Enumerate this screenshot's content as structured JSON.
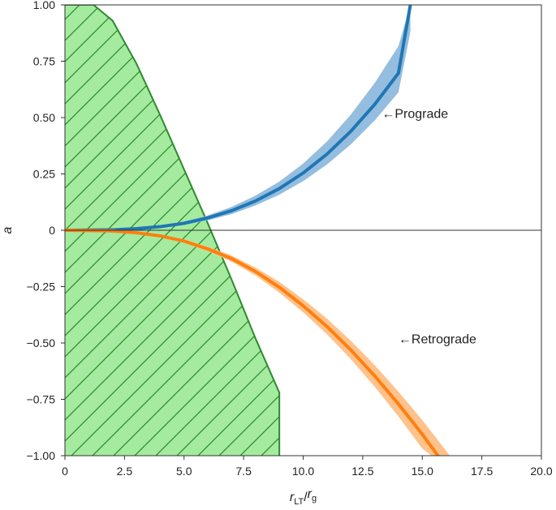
{
  "chart_data": {
    "type": "line",
    "xlabel": {
      "main": "r",
      "sub": "LT",
      "slash": "/",
      "main2": "r",
      "sub2": "g"
    },
    "ylabel": "a",
    "xlim": [
      0,
      20
    ],
    "ylim": [
      -1,
      1
    ],
    "xticks": [
      {
        "v": 0,
        "label": "0"
      },
      {
        "v": 2.5,
        "label": "2.5"
      },
      {
        "v": 5,
        "label": "5.0"
      },
      {
        "v": 7.5,
        "label": "7.5"
      },
      {
        "v": 10,
        "label": "10.0"
      },
      {
        "v": 12.5,
        "label": "12.5"
      },
      {
        "v": 15,
        "label": "15.0"
      },
      {
        "v": 17.5,
        "label": "17.5"
      },
      {
        "v": 20,
        "label": "20.0"
      }
    ],
    "yticks": [
      {
        "v": 1,
        "label": "1.00"
      },
      {
        "v": 0.75,
        "label": "0.75"
      },
      {
        "v": 0.5,
        "label": "0.50"
      },
      {
        "v": 0.25,
        "label": "0.25"
      },
      {
        "v": 0,
        "label": "0"
      },
      {
        "v": -0.25,
        "label": "−0.25"
      },
      {
        "v": -0.5,
        "label": "−0.50"
      },
      {
        "v": -0.75,
        "label": "−0.75"
      },
      {
        "v": -1,
        "label": "−1.00"
      }
    ],
    "series": [
      {
        "name": "Prograde",
        "color": "#1f77b4",
        "band_color": "#8fb9dd",
        "x": [
          0,
          2,
          3,
          4,
          5,
          6,
          7,
          8,
          9,
          10,
          11,
          12,
          13,
          14,
          14.5
        ],
        "y": [
          0,
          0.002,
          0.007,
          0.016,
          0.031,
          0.055,
          0.087,
          0.13,
          0.185,
          0.254,
          0.338,
          0.439,
          0.558,
          0.697,
          1.0
        ],
        "y_low": [
          0,
          0.001,
          0.005,
          0.012,
          0.024,
          0.044,
          0.072,
          0.11,
          0.158,
          0.218,
          0.292,
          0.381,
          0.487,
          0.612,
          0.88
        ],
        "y_high": [
          0,
          0.003,
          0.009,
          0.02,
          0.038,
          0.066,
          0.104,
          0.154,
          0.216,
          0.296,
          0.394,
          0.513,
          0.653,
          0.817,
          1.0
        ]
      },
      {
        "name": "Retrograde",
        "color": "#ff7f0e",
        "band_color": "#ffbf86",
        "x": [
          0,
          2,
          3,
          4,
          5,
          6,
          7,
          8,
          9,
          10,
          11,
          12,
          13,
          14,
          15,
          16,
          16.5
        ],
        "y": [
          0,
          -0.003,
          -0.011,
          -0.025,
          -0.048,
          -0.083,
          -0.126,
          -0.183,
          -0.253,
          -0.335,
          -0.427,
          -0.531,
          -0.646,
          -0.771,
          -0.905,
          -1.05,
          -1.05
        ],
        "y_low": [
          0,
          -0.004,
          -0.013,
          -0.03,
          -0.056,
          -0.093,
          -0.14,
          -0.2,
          -0.277,
          -0.364,
          -0.462,
          -0.572,
          -0.694,
          -0.826,
          -0.968,
          -1.05,
          -1.05
        ],
        "y_high": [
          0,
          -0.002,
          -0.009,
          -0.02,
          -0.04,
          -0.073,
          -0.112,
          -0.166,
          -0.229,
          -0.306,
          -0.392,
          -0.49,
          -0.598,
          -0.716,
          -0.842,
          -0.978,
          -1.05
        ]
      }
    ],
    "hatched_region": {
      "color": "#a4eb9f",
      "edge_color": "#2e8b2e",
      "boundary_x": [
        0,
        1.2,
        2.0,
        3.0,
        4.0,
        5.0,
        6.0,
        7.0,
        8.0,
        9.0,
        9.0,
        0
      ],
      "boundary_y": [
        1.0,
        1.0,
        0.93,
        0.74,
        0.51,
        0.27,
        0.03,
        -0.22,
        -0.48,
        -0.72,
        -1.0,
        -1.0
      ]
    },
    "annotations": [
      {
        "text": "←Prograde",
        "x": 13.3,
        "y": 0.52,
        "series": "Prograde"
      },
      {
        "text": "←Retrograde",
        "x": 14.0,
        "y": -0.48,
        "series": "Retrograde"
      }
    ]
  }
}
